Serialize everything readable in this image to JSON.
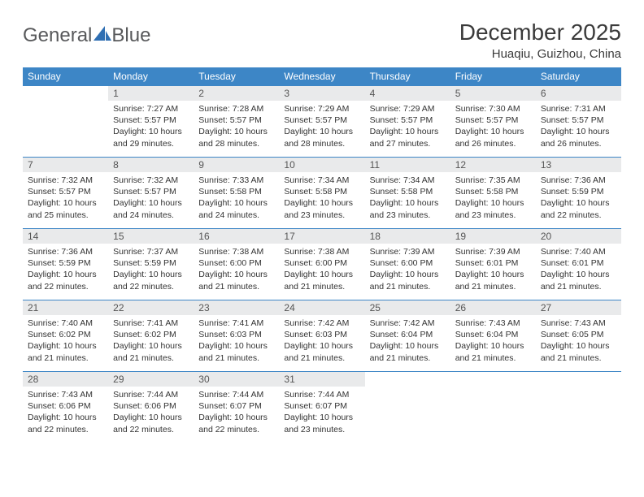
{
  "logo": {
    "text_general": "General",
    "text_blue": "Blue"
  },
  "title": "December 2025",
  "location": "Huaqiu, Guizhou, China",
  "colors": {
    "header_bg": "#3d86c6",
    "header_text": "#ffffff",
    "daynum_bg": "#e9eaeb",
    "row_border": "#3d86c6",
    "title_color": "#3a3a3a",
    "logo_color": "#58595b",
    "logo_accent": "#2f6fb3"
  },
  "weekdays": [
    "Sunday",
    "Monday",
    "Tuesday",
    "Wednesday",
    "Thursday",
    "Friday",
    "Saturday"
  ],
  "cells": [
    {
      "blank": true
    },
    {
      "num": "1",
      "sunrise": "7:27 AM",
      "sunset": "5:57 PM",
      "dl_h": "10",
      "dl_m": "29"
    },
    {
      "num": "2",
      "sunrise": "7:28 AM",
      "sunset": "5:57 PM",
      "dl_h": "10",
      "dl_m": "28"
    },
    {
      "num": "3",
      "sunrise": "7:29 AM",
      "sunset": "5:57 PM",
      "dl_h": "10",
      "dl_m": "28"
    },
    {
      "num": "4",
      "sunrise": "7:29 AM",
      "sunset": "5:57 PM",
      "dl_h": "10",
      "dl_m": "27"
    },
    {
      "num": "5",
      "sunrise": "7:30 AM",
      "sunset": "5:57 PM",
      "dl_h": "10",
      "dl_m": "26"
    },
    {
      "num": "6",
      "sunrise": "7:31 AM",
      "sunset": "5:57 PM",
      "dl_h": "10",
      "dl_m": "26"
    },
    {
      "num": "7",
      "sunrise": "7:32 AM",
      "sunset": "5:57 PM",
      "dl_h": "10",
      "dl_m": "25"
    },
    {
      "num": "8",
      "sunrise": "7:32 AM",
      "sunset": "5:57 PM",
      "dl_h": "10",
      "dl_m": "24"
    },
    {
      "num": "9",
      "sunrise": "7:33 AM",
      "sunset": "5:58 PM",
      "dl_h": "10",
      "dl_m": "24"
    },
    {
      "num": "10",
      "sunrise": "7:34 AM",
      "sunset": "5:58 PM",
      "dl_h": "10",
      "dl_m": "23"
    },
    {
      "num": "11",
      "sunrise": "7:34 AM",
      "sunset": "5:58 PM",
      "dl_h": "10",
      "dl_m": "23"
    },
    {
      "num": "12",
      "sunrise": "7:35 AM",
      "sunset": "5:58 PM",
      "dl_h": "10",
      "dl_m": "23"
    },
    {
      "num": "13",
      "sunrise": "7:36 AM",
      "sunset": "5:59 PM",
      "dl_h": "10",
      "dl_m": "22"
    },
    {
      "num": "14",
      "sunrise": "7:36 AM",
      "sunset": "5:59 PM",
      "dl_h": "10",
      "dl_m": "22"
    },
    {
      "num": "15",
      "sunrise": "7:37 AM",
      "sunset": "5:59 PM",
      "dl_h": "10",
      "dl_m": "22"
    },
    {
      "num": "16",
      "sunrise": "7:38 AM",
      "sunset": "6:00 PM",
      "dl_h": "10",
      "dl_m": "21"
    },
    {
      "num": "17",
      "sunrise": "7:38 AM",
      "sunset": "6:00 PM",
      "dl_h": "10",
      "dl_m": "21"
    },
    {
      "num": "18",
      "sunrise": "7:39 AM",
      "sunset": "6:00 PM",
      "dl_h": "10",
      "dl_m": "21"
    },
    {
      "num": "19",
      "sunrise": "7:39 AM",
      "sunset": "6:01 PM",
      "dl_h": "10",
      "dl_m": "21"
    },
    {
      "num": "20",
      "sunrise": "7:40 AM",
      "sunset": "6:01 PM",
      "dl_h": "10",
      "dl_m": "21"
    },
    {
      "num": "21",
      "sunrise": "7:40 AM",
      "sunset": "6:02 PM",
      "dl_h": "10",
      "dl_m": "21"
    },
    {
      "num": "22",
      "sunrise": "7:41 AM",
      "sunset": "6:02 PM",
      "dl_h": "10",
      "dl_m": "21"
    },
    {
      "num": "23",
      "sunrise": "7:41 AM",
      "sunset": "6:03 PM",
      "dl_h": "10",
      "dl_m": "21"
    },
    {
      "num": "24",
      "sunrise": "7:42 AM",
      "sunset": "6:03 PM",
      "dl_h": "10",
      "dl_m": "21"
    },
    {
      "num": "25",
      "sunrise": "7:42 AM",
      "sunset": "6:04 PM",
      "dl_h": "10",
      "dl_m": "21"
    },
    {
      "num": "26",
      "sunrise": "7:43 AM",
      "sunset": "6:04 PM",
      "dl_h": "10",
      "dl_m": "21"
    },
    {
      "num": "27",
      "sunrise": "7:43 AM",
      "sunset": "6:05 PM",
      "dl_h": "10",
      "dl_m": "21"
    },
    {
      "num": "28",
      "sunrise": "7:43 AM",
      "sunset": "6:06 PM",
      "dl_h": "10",
      "dl_m": "22"
    },
    {
      "num": "29",
      "sunrise": "7:44 AM",
      "sunset": "6:06 PM",
      "dl_h": "10",
      "dl_m": "22"
    },
    {
      "num": "30",
      "sunrise": "7:44 AM",
      "sunset": "6:07 PM",
      "dl_h": "10",
      "dl_m": "22"
    },
    {
      "num": "31",
      "sunrise": "7:44 AM",
      "sunset": "6:07 PM",
      "dl_h": "10",
      "dl_m": "23"
    },
    {
      "blank": true
    },
    {
      "blank": true
    },
    {
      "blank": true
    }
  ]
}
